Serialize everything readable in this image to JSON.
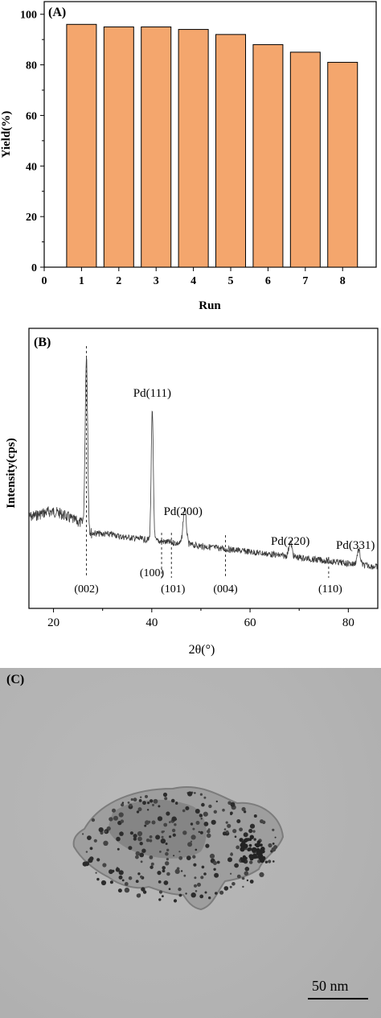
{
  "chart_data": [
    {
      "panel": "(A)",
      "type": "bar",
      "xlabel": "Run",
      "ylabel": "Yield(%)",
      "categories": [
        "1",
        "2",
        "3",
        "4",
        "5",
        "6",
        "7",
        "8"
      ],
      "values": [
        96,
        95,
        95,
        94,
        92,
        88,
        85,
        81
      ],
      "xlim": [
        0,
        8.9
      ],
      "ylim": [
        0,
        105
      ],
      "x_ticks": [
        "0",
        "1",
        "2",
        "3",
        "4",
        "5",
        "6",
        "7",
        "8"
      ],
      "y_ticks": [
        "0",
        "20",
        "40",
        "60",
        "80",
        "100"
      ],
      "bar_color": "#f4a66d",
      "grid": false
    },
    {
      "panel": "(B)",
      "type": "line",
      "xlabel": "2θ(°)",
      "ylabel": "Intensity(cps)",
      "xlim": [
        15,
        86
      ],
      "x_ticks": [
        "20",
        "40",
        "60",
        "80"
      ],
      "peaks": [
        {
          "label": "Pd(111)",
          "x": 40.1
        },
        {
          "label": "Pd(200)",
          "x": 46.7
        },
        {
          "label": "Pd(220)",
          "x": 68.2
        },
        {
          "label": "Pd(331)",
          "x": 82.1
        }
      ],
      "reference_lines": [
        {
          "label": "(002)",
          "x": 26.7
        },
        {
          "label": "(100)",
          "x": 42.0
        },
        {
          "label": "(101)",
          "x": 44.0
        },
        {
          "label": "(004)",
          "x": 55.0
        },
        {
          "label": "(110)",
          "x": 76.0
        }
      ],
      "line_color": "#333333",
      "grid": false
    }
  ],
  "panel_c": {
    "label": "(C)",
    "scale_bar": "50 nm"
  }
}
